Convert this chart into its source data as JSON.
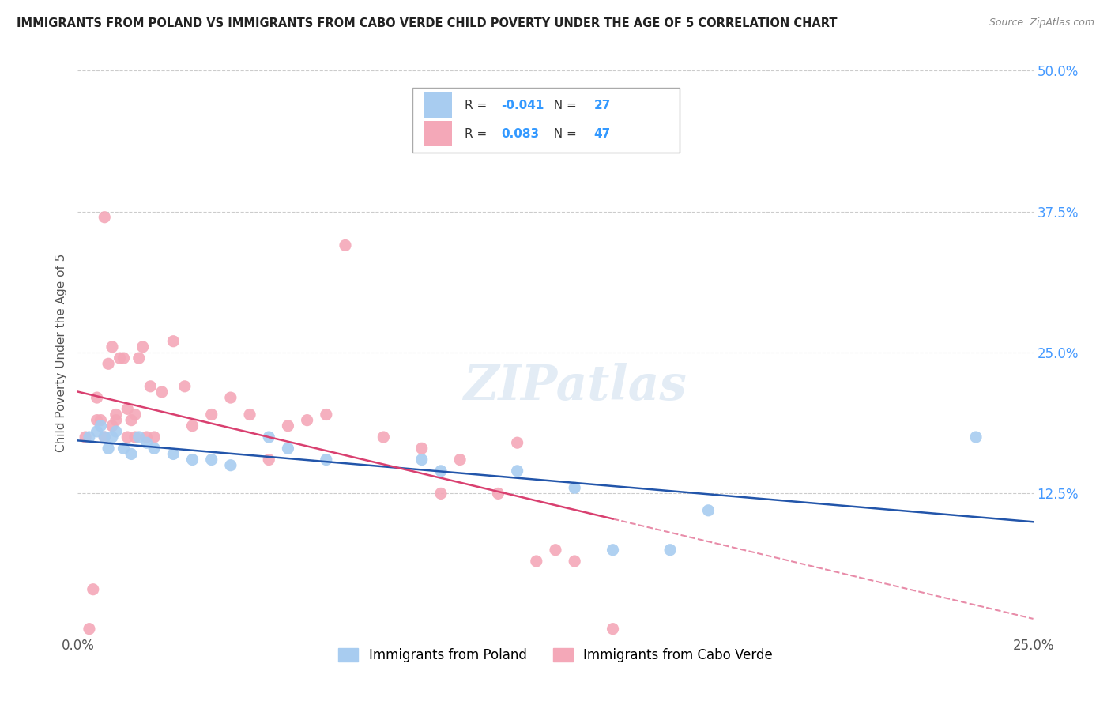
{
  "title": "IMMIGRANTS FROM POLAND VS IMMIGRANTS FROM CABO VERDE CHILD POVERTY UNDER THE AGE OF 5 CORRELATION CHART",
  "source": "Source: ZipAtlas.com",
  "ylabel": "Child Poverty Under the Age of 5",
  "legend_label_blue": "Immigrants from Poland",
  "legend_label_pink": "Immigrants from Cabo Verde",
  "r_blue": "-0.041",
  "n_blue": "27",
  "r_pink": "0.083",
  "n_pink": "47",
  "xlim": [
    0.0,
    0.25
  ],
  "ylim": [
    0.0,
    0.5
  ],
  "yticks_right": [
    0.125,
    0.25,
    0.375,
    0.5
  ],
  "ytick_right_labels": [
    "12.5%",
    "25.0%",
    "37.5%",
    "50.0%"
  ],
  "color_blue": "#A8CCF0",
  "color_pink": "#F4A8B8",
  "line_color_blue": "#2255AA",
  "line_color_pink": "#D94070",
  "watermark": "ZIPatlas",
  "blue_scatter_x": [
    0.003,
    0.005,
    0.006,
    0.007,
    0.008,
    0.009,
    0.01,
    0.012,
    0.014,
    0.016,
    0.018,
    0.02,
    0.025,
    0.03,
    0.035,
    0.04,
    0.05,
    0.055,
    0.065,
    0.09,
    0.095,
    0.115,
    0.13,
    0.14,
    0.155,
    0.165,
    0.235
  ],
  "blue_scatter_y": [
    0.175,
    0.18,
    0.185,
    0.175,
    0.165,
    0.175,
    0.18,
    0.165,
    0.16,
    0.175,
    0.17,
    0.165,
    0.16,
    0.155,
    0.155,
    0.15,
    0.175,
    0.165,
    0.155,
    0.155,
    0.145,
    0.145,
    0.13,
    0.075,
    0.075,
    0.11,
    0.175
  ],
  "pink_scatter_x": [
    0.002,
    0.003,
    0.004,
    0.005,
    0.005,
    0.006,
    0.007,
    0.007,
    0.008,
    0.009,
    0.009,
    0.01,
    0.01,
    0.011,
    0.012,
    0.013,
    0.013,
    0.014,
    0.015,
    0.015,
    0.016,
    0.017,
    0.018,
    0.019,
    0.02,
    0.022,
    0.025,
    0.028,
    0.03,
    0.035,
    0.04,
    0.045,
    0.05,
    0.055,
    0.06,
    0.065,
    0.07,
    0.08,
    0.09,
    0.095,
    0.1,
    0.11,
    0.115,
    0.12,
    0.125,
    0.13,
    0.14
  ],
  "pink_scatter_y": [
    0.175,
    0.005,
    0.04,
    0.19,
    0.21,
    0.19,
    0.175,
    0.37,
    0.24,
    0.185,
    0.255,
    0.19,
    0.195,
    0.245,
    0.245,
    0.2,
    0.175,
    0.19,
    0.175,
    0.195,
    0.245,
    0.255,
    0.175,
    0.22,
    0.175,
    0.215,
    0.26,
    0.22,
    0.185,
    0.195,
    0.21,
    0.195,
    0.155,
    0.185,
    0.19,
    0.195,
    0.345,
    0.175,
    0.165,
    0.125,
    0.155,
    0.125,
    0.17,
    0.065,
    0.075,
    0.065,
    0.005
  ]
}
